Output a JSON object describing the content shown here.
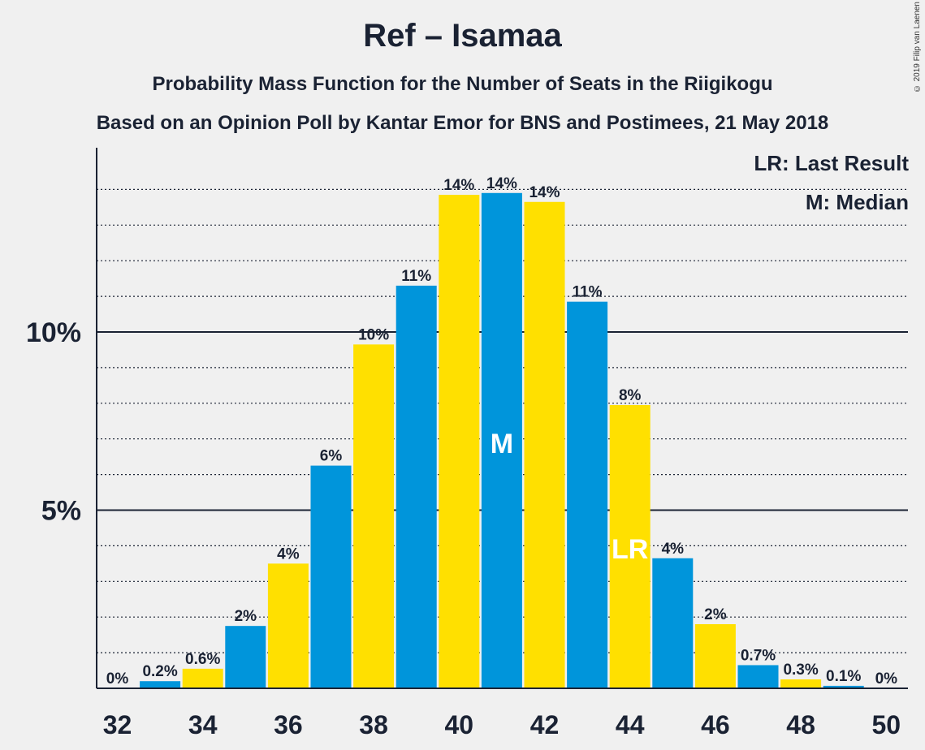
{
  "header": {
    "title": "Ref – Isamaa",
    "subtitle": "Probability Mass Function for the Number of Seats in the Riigikogu",
    "source": "Based on an Opinion Poll by Kantar Emor for BNS and Postimees, 21 May 2018",
    "copyright": "© 2019 Filip van Laenen"
  },
  "legend": {
    "last_result": "LR: Last Result",
    "median": "M: Median"
  },
  "colors": {
    "blue": "#0095db",
    "yellow": "#ffe000",
    "text": "#1a2233"
  },
  "chart_data": {
    "type": "bar",
    "title": "Ref – Isamaa",
    "subtitle": "Probability Mass Function for the Number of Seats in the Riigikogu",
    "x": [
      32,
      33,
      34,
      35,
      36,
      37,
      38,
      39,
      40,
      41,
      42,
      43,
      44,
      45,
      46,
      47,
      48,
      49,
      50
    ],
    "values": [
      0,
      0.2,
      0.55,
      1.75,
      3.5,
      6.25,
      9.65,
      11.3,
      13.85,
      13.9,
      13.65,
      10.85,
      7.95,
      3.65,
      1.8,
      0.65,
      0.25,
      0.07,
      0
    ],
    "labels": [
      "0%",
      "0.2%",
      "0.6%",
      "2%",
      "4%",
      "6%",
      "10%",
      "11%",
      "14%",
      "14%",
      "14%",
      "11%",
      "8%",
      "4%",
      "2%",
      "0.7%",
      "0.3%",
      "0.1%",
      "0%"
    ],
    "x_ticks": [
      "32",
      "34",
      "36",
      "38",
      "40",
      "42",
      "44",
      "46",
      "48",
      "50"
    ],
    "y_ticks": [
      {
        "value": 5,
        "label": "5%"
      },
      {
        "value": 10,
        "label": "10%"
      }
    ],
    "ylim": [
      0,
      15
    ],
    "median": 41,
    "median_label": "M",
    "last_result": 44,
    "last_result_label": "LR",
    "grid": true,
    "legend_position": "top-right"
  }
}
